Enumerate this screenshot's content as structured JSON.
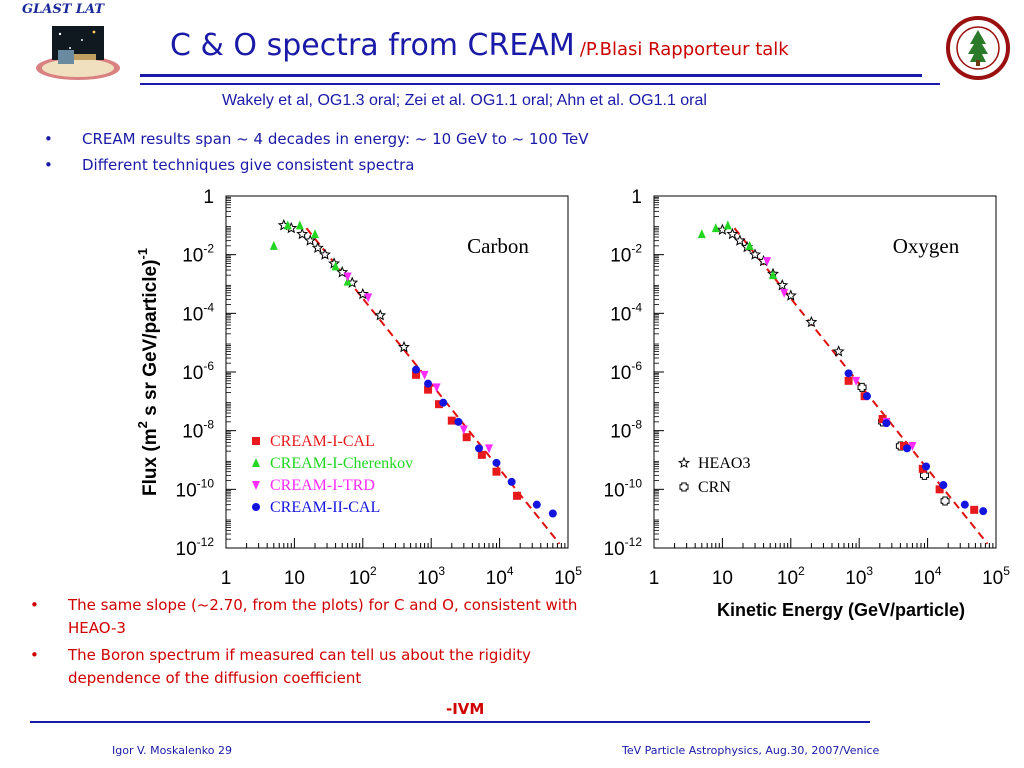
{
  "header": {
    "logo": "GLAST LAT",
    "title": "C & O spectra from CREAM",
    "subtitle": "/P.Blasi Rapporteur talk",
    "references": "Wakely et al, OG1.3 oral; Zei et al. OG1.1 oral; Ahn et al. OG1.1 oral"
  },
  "top_bullets": [
    "CREAM results span ~ 4 decades in energy: ~ 10 GeV to ~ 100 TeV",
    "Different techniques give consistent spectra"
  ],
  "bottom_bullets": [
    "The same slope (~2.70, from the plots) for C and O, consistent with HEAO-3",
    "The Boron spectrum if measured can tell us about the rigidity dependence of the diffusion coefficient"
  ],
  "signature": "-IVM",
  "footer": {
    "left": "Igor V. Moskalenko  29",
    "right": "TeV Particle Astrophysics, Aug.30, 2007/Venice"
  },
  "colors": {
    "title": "#1a1aa8",
    "red": "#d00000",
    "cal": "#e8191c",
    "cherenkov": "#22d622",
    "trd": "#ff2bff",
    "cream2": "#1414e0",
    "fit": "#e01010"
  },
  "chart_data": [
    {
      "type": "scatter",
      "label": "Carbon",
      "xlog": true,
      "ylog": true,
      "xlim": [
        1,
        100000
      ],
      "ylim": [
        1e-12,
        1
      ],
      "xticks": [
        "1",
        "10",
        "10^2",
        "10^3",
        "10^4",
        "10^5"
      ],
      "yticks": [
        "1",
        "10^-2",
        "10^-4",
        "10^-6",
        "10^-8",
        "10^-10",
        "10^-12"
      ],
      "ylabel": "Flux (m^2 s sr GeV/particle)^-1",
      "legend": [
        "CREAM-I-CAL",
        "CREAM-I-Cherenkov",
        "CREAM-I-TRD",
        "CREAM-II-CAL"
      ],
      "legend_position": "bottom-left",
      "fit_line": [
        [
          15,
          0.08
        ],
        [
          75000,
          1.4e-12
        ]
      ],
      "series": [
        {
          "name": "HEAO3",
          "marker": "star",
          "points": [
            [
              7,
              0.1
            ],
            [
              9,
              0.08
            ],
            [
              13,
              0.05
            ],
            [
              17,
              0.03
            ],
            [
              22,
              0.017
            ],
            [
              28,
              0.01
            ],
            [
              38,
              0.005
            ],
            [
              50,
              0.0025
            ],
            [
              70,
              0.0011
            ],
            [
              100,
              0.00045
            ],
            [
              180,
              8.5e-05
            ],
            [
              400,
              7e-06
            ]
          ]
        },
        {
          "name": "CREAM-I-CAL",
          "marker": "square",
          "points": [
            [
              600,
              8e-07
            ],
            [
              900,
              2.5e-07
            ],
            [
              1300,
              8e-08
            ],
            [
              2000,
              2.2e-08
            ],
            [
              3300,
              6e-09
            ],
            [
              5500,
              1.5e-09
            ],
            [
              9000,
              4e-10
            ],
            [
              18000,
              6e-11
            ]
          ]
        },
        {
          "name": "CREAM-I-Cherenkov",
          "marker": "triangle-up",
          "points": [
            [
              5,
              0.02
            ],
            [
              8,
              0.1
            ],
            [
              12,
              0.1
            ],
            [
              20,
              0.05
            ],
            [
              40,
              0.004
            ],
            [
              60,
              0.0012
            ]
          ]
        },
        {
          "name": "CREAM-I-TRD",
          "marker": "triangle-down",
          "points": [
            [
              60,
              0.0018
            ],
            [
              120,
              0.00035
            ],
            [
              800,
              8e-07
            ],
            [
              1200,
              3e-07
            ],
            [
              3000,
              1.1e-08
            ],
            [
              7000,
              2.5e-09
            ]
          ]
        },
        {
          "name": "CREAM-II-CAL",
          "marker": "circle",
          "points": [
            [
              600,
              1.2e-06
            ],
            [
              900,
              4e-07
            ],
            [
              1500,
              9e-08
            ],
            [
              2500,
              2e-08
            ],
            [
              5000,
              2.5e-09
            ],
            [
              9000,
              8e-10
            ],
            [
              15000,
              1.8e-10
            ],
            [
              35000,
              3e-11
            ],
            [
              60000,
              1.5e-11
            ]
          ]
        }
      ]
    },
    {
      "type": "scatter",
      "label": "Oxygen",
      "xlog": true,
      "ylog": true,
      "xlim": [
        1,
        100000
      ],
      "ylim": [
        1e-12,
        1
      ],
      "xticks": [
        "1",
        "10",
        "10^2",
        "10^3",
        "10^4",
        "10^5"
      ],
      "yticks": [
        "1",
        "10^-2",
        "10^-4",
        "10^-6",
        "10^-8",
        "10^-10",
        "10^-12"
      ],
      "xlabel": "Kinetic Energy (GeV/particle)",
      "legend": [
        "HEAO3",
        "CRN"
      ],
      "legend_position": "bottom-left",
      "fit_line": [
        [
          15,
          0.08
        ],
        [
          75000,
          1.4e-12
        ]
      ],
      "series": [
        {
          "name": "HEAO3",
          "marker": "star",
          "points": [
            [
              10,
              0.07
            ],
            [
              14,
              0.05
            ],
            [
              18,
              0.03
            ],
            [
              23,
              0.018
            ],
            [
              30,
              0.01
            ],
            [
              40,
              0.006
            ],
            [
              55,
              0.0022
            ],
            [
              75,
              0.0009
            ],
            [
              100,
              0.0004
            ],
            [
              200,
              5e-05
            ],
            [
              500,
              5e-06
            ]
          ]
        },
        {
          "name": "CRN",
          "marker": "cross",
          "points": [
            [
              1100,
              3e-07
            ],
            [
              2200,
              2e-08
            ],
            [
              4000,
              3e-09
            ],
            [
              9000,
              3e-10
            ],
            [
              18000,
              4e-11
            ]
          ]
        },
        {
          "name": "CREAM-I-CAL",
          "marker": "square",
          "points": [
            [
              700,
              5e-07
            ],
            [
              1200,
              1.5e-07
            ],
            [
              2200,
              2.5e-08
            ],
            [
              4500,
              3e-09
            ],
            [
              8500,
              5e-10
            ],
            [
              15000,
              1e-10
            ],
            [
              48000,
              2e-11
            ]
          ]
        },
        {
          "name": "CREAM-I-Cherenkov",
          "marker": "triangle-up",
          "points": [
            [
              5,
              0.05
            ],
            [
              8,
              0.08
            ],
            [
              12,
              0.1
            ],
            [
              25,
              0.02
            ],
            [
              55,
              0.002
            ]
          ]
        },
        {
          "name": "CREAM-I-TRD",
          "marker": "triangle-down",
          "points": [
            [
              45,
              0.006
            ],
            [
              80,
              0.0005
            ],
            [
              900,
              5e-07
            ],
            [
              2500,
              2e-08
            ],
            [
              6000,
              3e-09
            ]
          ]
        },
        {
          "name": "CREAM-II-CAL",
          "marker": "circle",
          "points": [
            [
              700,
              9e-07
            ],
            [
              1300,
              1.5e-07
            ],
            [
              2500,
              1.8e-08
            ],
            [
              5000,
              2.5e-09
            ],
            [
              9500,
              6e-10
            ],
            [
              17000,
              1.4e-10
            ],
            [
              35000,
              3e-11
            ],
            [
              65000,
              1.8e-11
            ]
          ]
        }
      ]
    }
  ]
}
